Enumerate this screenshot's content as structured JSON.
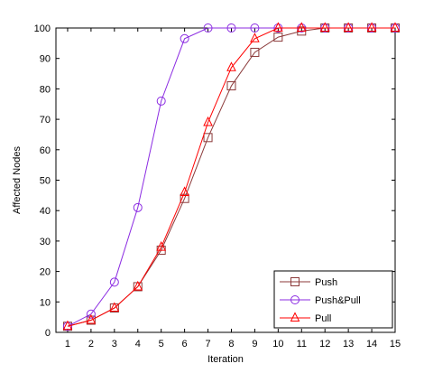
{
  "chart_data": {
    "type": "line",
    "xlabel": "Iteration",
    "ylabel": "Affected Nodes",
    "xlim": [
      0.5,
      15
    ],
    "ylim": [
      0,
      100
    ],
    "xticks": [
      1,
      2,
      3,
      4,
      5,
      6,
      7,
      8,
      9,
      10,
      11,
      12,
      13,
      14,
      15
    ],
    "yticks": [
      0,
      10,
      20,
      30,
      40,
      50,
      60,
      70,
      80,
      90,
      100
    ],
    "grid": false,
    "legend_position": "bottom-right",
    "x": [
      1,
      2,
      3,
      4,
      5,
      6,
      7,
      8,
      9,
      10,
      11,
      12,
      13,
      14,
      15
    ],
    "series": [
      {
        "name": "Push",
        "color": "#8b3a3a",
        "marker": "square",
        "values": [
          2,
          4,
          8,
          15,
          27,
          44,
          64,
          81,
          92,
          97,
          99,
          100,
          100,
          100,
          100
        ]
      },
      {
        "name": "Push&Pull",
        "color": "#8b2be2",
        "marker": "circle",
        "values": [
          2,
          6,
          16.5,
          41,
          76,
          96.5,
          100,
          100,
          100,
          100,
          100,
          100,
          100,
          100,
          100
        ]
      },
      {
        "name": "Pull",
        "color": "#ff0000",
        "marker": "triangle",
        "values": [
          2,
          4,
          8,
          15,
          28,
          46,
          69,
          87,
          96.5,
          100,
          100,
          100,
          100,
          100,
          100
        ]
      }
    ]
  }
}
